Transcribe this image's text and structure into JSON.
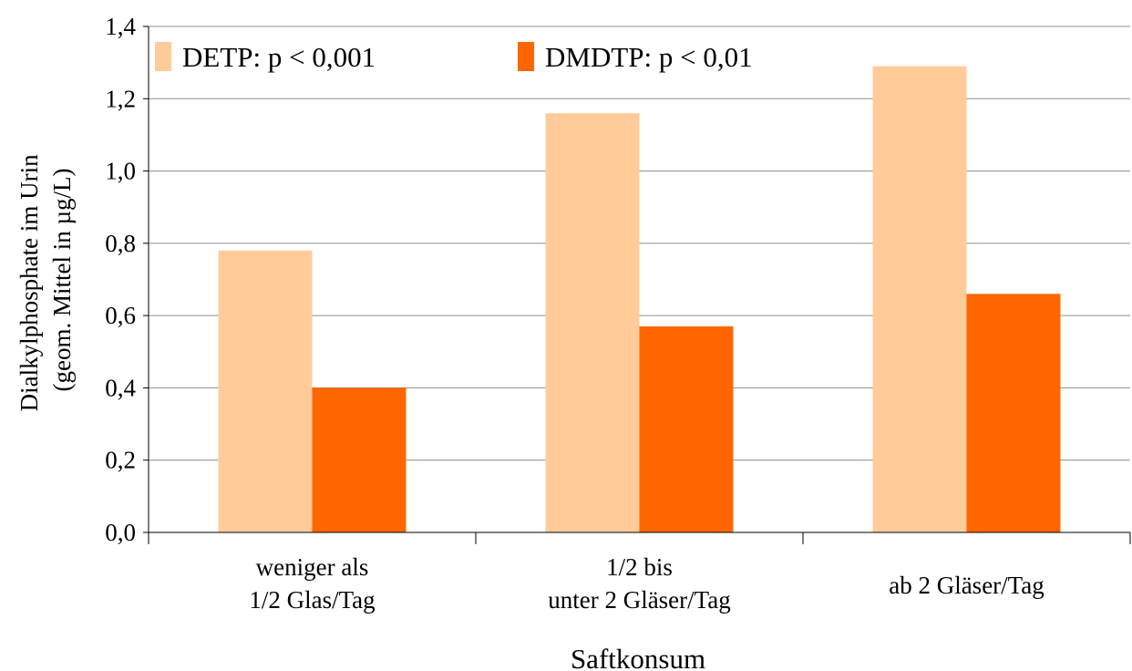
{
  "chart_data": {
    "type": "bar",
    "title": "",
    "xlabel": "Saftkonsum",
    "ylabel_lines": [
      "Dialkylphosphate im Urin",
      "(geom. Mittel in µg/L)"
    ],
    "categories": [
      [
        "weniger als",
        "1/2 Glas/Tag"
      ],
      [
        "1/2 bis",
        "unter 2 Gläser/Tag"
      ],
      [
        "ab 2 Gläser/Tag"
      ]
    ],
    "series": [
      {
        "name": "DETP: p < 0,001",
        "color": "#FFCC99",
        "values": [
          0.78,
          1.16,
          1.29
        ]
      },
      {
        "name": "DMDTP: p < 0,01",
        "color": "#FF6600",
        "values": [
          0.4,
          0.57,
          0.66
        ]
      }
    ],
    "ylim": [
      0,
      1.4
    ],
    "yticks": [
      "0,0",
      "0,2",
      "0,4",
      "0,6",
      "0,8",
      "1,0",
      "1,2",
      "1,4"
    ],
    "grid": true,
    "legend": "top"
  }
}
